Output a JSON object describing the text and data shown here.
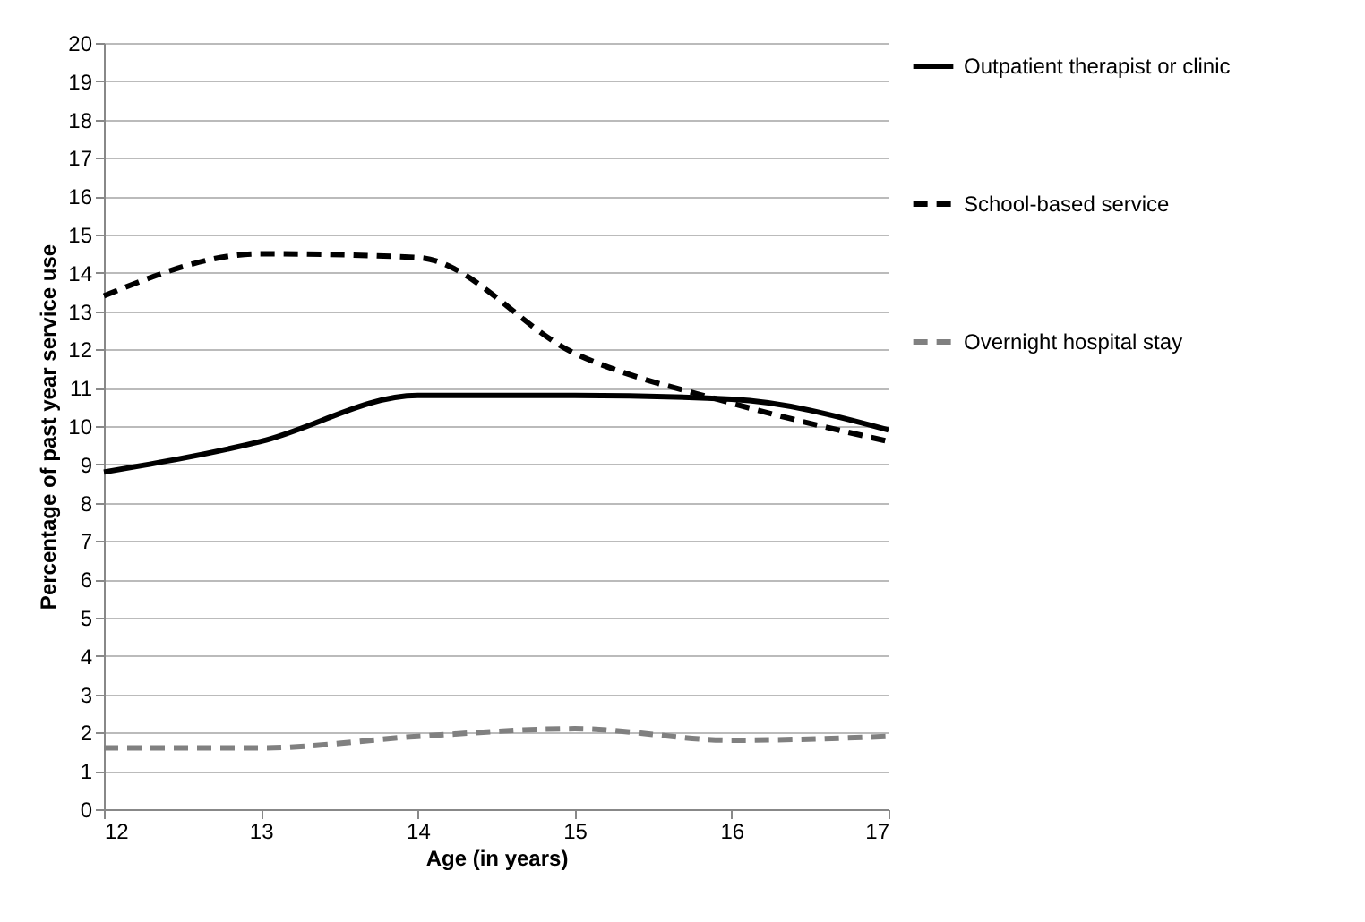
{
  "chart_data": {
    "type": "line",
    "xlabel": "Age (in years)",
    "ylabel": "Percentage of past year service use",
    "x": [
      12,
      13,
      14,
      15,
      16,
      17
    ],
    "series": [
      {
        "name": "Outpatient therapist or clinic",
        "color": "#000000",
        "line_style": "solid",
        "values": [
          8.8,
          9.6,
          10.8,
          10.8,
          10.7,
          9.9
        ]
      },
      {
        "name": "School-based service",
        "color": "#000000",
        "line_style": "dashed",
        "values": [
          13.4,
          14.5,
          14.4,
          11.9,
          10.6,
          9.6
        ]
      },
      {
        "name": "Overnight hospital stay",
        "color": "#808080",
        "line_style": "dashed",
        "values": [
          1.6,
          1.6,
          1.9,
          2.1,
          1.8,
          1.9
        ]
      }
    ],
    "xlim": [
      12,
      17
    ],
    "xticks": [
      12,
      13,
      14,
      15,
      16,
      17
    ],
    "ylim": [
      0,
      20
    ],
    "yticks": [
      0,
      1,
      2,
      3,
      4,
      5,
      6,
      7,
      8,
      9,
      10,
      11,
      12,
      13,
      14,
      15,
      16,
      17,
      18,
      19,
      20
    ],
    "grid": "y",
    "legend": "right",
    "marker": "none"
  }
}
